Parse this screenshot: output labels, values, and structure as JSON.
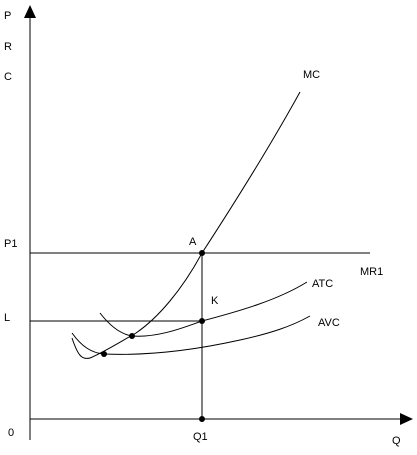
{
  "axes": {
    "y_label_p": "P",
    "y_label_r": "R",
    "y_label_c": "C",
    "x_label": "Q",
    "origin": "0"
  },
  "levels": {
    "p1": "P1",
    "l": "L",
    "q1": "Q1"
  },
  "curves": {
    "mc": "MC",
    "atc": "ATC",
    "avc": "AVC",
    "mr1": "MR1"
  },
  "points": {
    "a": "A",
    "k": "K"
  }
}
